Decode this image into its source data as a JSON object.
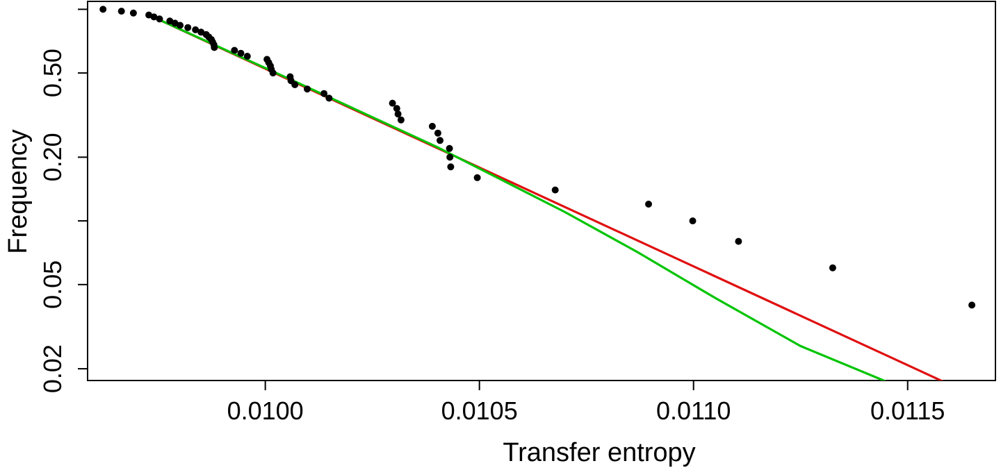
{
  "chart_data": {
    "type": "scatter",
    "title": "",
    "xlabel": "Transfer entropy",
    "ylabel": "Frequency",
    "xlim": [
      0.009585,
      0.011705
    ],
    "ylim_log": [
      0.0176,
      1.09
    ],
    "y_scale": "log",
    "grid": false,
    "x_ticks": [
      {
        "value": 0.01,
        "label": "0.0100"
      },
      {
        "value": 0.0105,
        "label": "0.0105"
      },
      {
        "value": 0.011,
        "label": "0.0110"
      },
      {
        "value": 0.0115,
        "label": "0.0115"
      }
    ],
    "y_ticks": [
      {
        "value": 1.0,
        "label": ""
      },
      {
        "value": 0.5,
        "label": "0.50"
      },
      {
        "value": 0.2,
        "label": "0.20"
      },
      {
        "value": 0.1,
        "label": ""
      },
      {
        "value": 0.05,
        "label": "0.05"
      },
      {
        "value": 0.02,
        "label": "0.02"
      }
    ],
    "points": [
      [
        0.009621,
        1.0
      ],
      [
        0.009664,
        0.98
      ],
      [
        0.009692,
        0.96
      ],
      [
        0.009728,
        0.94
      ],
      [
        0.00974,
        0.92
      ],
      [
        0.009753,
        0.9
      ],
      [
        0.009777,
        0.88
      ],
      [
        0.009789,
        0.86
      ],
      [
        0.009801,
        0.84
      ],
      [
        0.009819,
        0.82
      ],
      [
        0.009837,
        0.8
      ],
      [
        0.00985,
        0.78
      ],
      [
        0.009862,
        0.76
      ],
      [
        0.009868,
        0.74
      ],
      [
        0.009874,
        0.72
      ],
      [
        0.009877,
        0.7
      ],
      [
        0.00988,
        0.68
      ],
      [
        0.009881,
        0.66
      ],
      [
        0.009928,
        0.64
      ],
      [
        0.009943,
        0.62
      ],
      [
        0.009958,
        0.6
      ],
      [
        0.010004,
        0.58
      ],
      [
        0.010008,
        0.56
      ],
      [
        0.010012,
        0.54
      ],
      [
        0.010014,
        0.52
      ],
      [
        0.010018,
        0.5
      ],
      [
        0.010058,
        0.48
      ],
      [
        0.01006,
        0.46
      ],
      [
        0.010069,
        0.44
      ],
      [
        0.010098,
        0.42
      ],
      [
        0.010137,
        0.4
      ],
      [
        0.010149,
        0.38
      ],
      [
        0.010297,
        0.36
      ],
      [
        0.010307,
        0.34
      ],
      [
        0.01031,
        0.32
      ],
      [
        0.010317,
        0.3
      ],
      [
        0.01039,
        0.28
      ],
      [
        0.010403,
        0.26
      ],
      [
        0.010408,
        0.24
      ],
      [
        0.01043,
        0.22
      ],
      [
        0.010431,
        0.2
      ],
      [
        0.010433,
        0.18
      ],
      [
        0.010495,
        0.16
      ],
      [
        0.010677,
        0.14
      ],
      [
        0.010895,
        0.12
      ],
      [
        0.010998,
        0.1
      ],
      [
        0.011105,
        0.08
      ],
      [
        0.011325,
        0.06
      ],
      [
        0.01165,
        0.04
      ]
    ],
    "series": [
      {
        "type": "line",
        "color": "#e01010",
        "x": [
          0.009728,
          0.011583
        ],
        "y": [
          0.94,
          0.0174
        ]
      },
      {
        "type": "line",
        "color": "#00c400",
        "x": [
          0.009728,
          0.01007,
          0.0104,
          0.0107,
          0.01087,
          0.01105,
          0.01125,
          0.01145
        ],
        "y": [
          0.94,
          0.455,
          0.224,
          0.11,
          0.071,
          0.0433,
          0.0256,
          0.0174
        ]
      }
    ]
  }
}
